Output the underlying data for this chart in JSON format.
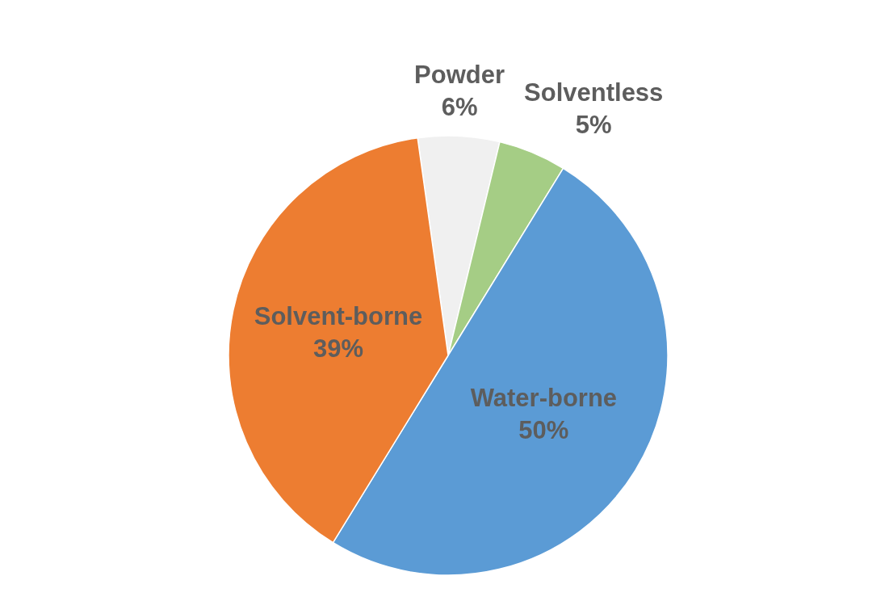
{
  "chart_data": {
    "type": "pie",
    "categories": [
      "Powder",
      "Solventless",
      "Water-borne",
      "Solvent-borne"
    ],
    "values": [
      6,
      5,
      50,
      39
    ],
    "colors": [
      "#f0f0f0",
      "#a5cd85",
      "#5b9bd5",
      "#ed7d31"
    ],
    "value_labels": [
      "6%",
      "5%",
      "50%",
      "39%"
    ]
  }
}
